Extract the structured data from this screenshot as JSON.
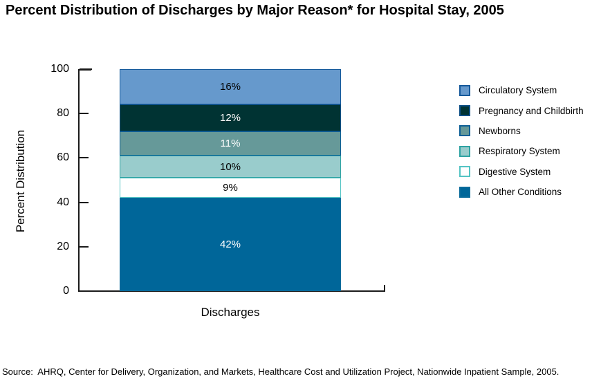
{
  "title": "Percent Distribution of Discharges by Major Reason* for Hospital Stay, 2005",
  "source_note": "Source:  AHRQ, Center for Delivery, Organization, and Markets, Healthcare Cost and Utilization Project, Nationwide Inpatient Sample, 2005.",
  "chart_data": {
    "type": "bar",
    "stacked": true,
    "title": "Percent Distribution of Discharges by Major Reason* for Hospital Stay, 2005",
    "categories": [
      "Discharges"
    ],
    "xlabel": "Discharges",
    "ylabel": "Percent Distribution",
    "ylim": [
      0,
      100
    ],
    "yticks": [
      0,
      20,
      40,
      60,
      80,
      100
    ],
    "grid": false,
    "legend_position": "right",
    "series": [
      {
        "name": "Circulatory System",
        "value": 16,
        "data_label": "16%",
        "fill": "#6699CC",
        "border": "#15599B",
        "label_color": "#000000"
      },
      {
        "name": "Pregnancy and Childbirth",
        "value": 12,
        "data_label": "12%",
        "fill": "#003333",
        "border": "#0D4F86",
        "label_color": "#FFFFFF"
      },
      {
        "name": "Newborns",
        "value": 11,
        "data_label": "11%",
        "fill": "#669999",
        "border": "#0D5F96",
        "label_color": "#FFFFFF"
      },
      {
        "name": "Respiratory System",
        "value": 10,
        "data_label": "10%",
        "fill": "#99CCCC",
        "border": "#2FA3A3",
        "label_color": "#000000"
      },
      {
        "name": "Digestive System",
        "value": 9,
        "data_label": "9%",
        "fill": "#FFFFFF",
        "border": "#55C4C4",
        "label_color": "#000000"
      },
      {
        "name": "All Other Conditions",
        "value": 42,
        "data_label": "42%",
        "fill": "#006699",
        "border": "#0A6B9B",
        "label_color": "#FFFFFF"
      }
    ],
    "axis_color": "#1a1a1a"
  }
}
